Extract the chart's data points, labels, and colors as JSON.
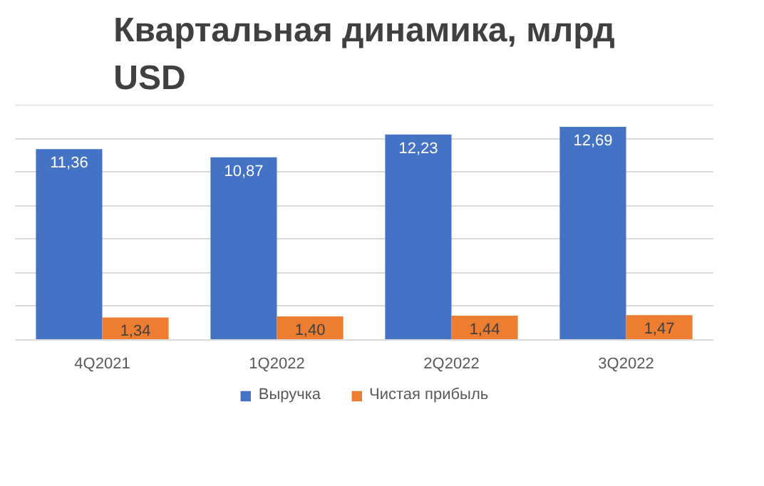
{
  "chart_data": {
    "type": "bar",
    "title": "Квартальная динамика, млрд USD",
    "categories": [
      "4Q2021",
      "1Q2022",
      "2Q2022",
      "3Q2022"
    ],
    "series": [
      {
        "name": "Выручка",
        "color": "#4472c4",
        "values": [
          11.36,
          10.87,
          12.23,
          12.69
        ],
        "value_labels": [
          "11,36",
          "10,87",
          "12,23",
          "12,69"
        ]
      },
      {
        "name": "Чистая прибыль",
        "color": "#ed7d31",
        "values": [
          1.34,
          1.4,
          1.44,
          1.47
        ],
        "value_labels": [
          "1,34",
          "1,40",
          "1,44",
          "1,47"
        ]
      }
    ],
    "ylim": [
      0,
      14
    ],
    "yticks": [
      {
        "value": 0,
        "label": null
      },
      {
        "value": 2,
        "label": null
      },
      {
        "value": 4,
        "label": null
      },
      {
        "value": 6,
        "label": null
      },
      {
        "value": 8,
        "label": null
      },
      {
        "value": 10,
        "label": null
      },
      {
        "value": 12,
        "label": null
      },
      {
        "value": 14,
        "label": null
      }
    ],
    "grid": "y",
    "legend": "bottom",
    "tick_labels": "x"
  }
}
